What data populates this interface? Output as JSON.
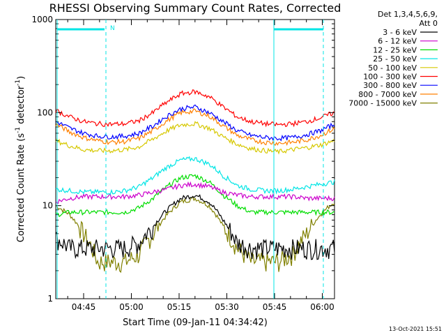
{
  "chart_data": {
    "type": "line",
    "title": "RHESSI Observing Summary Count Rates, Corrected",
    "xlabel": "Start Time (09-Jan-11 04:34:42)",
    "ylabel_main": "Corrected Count Rate (s",
    "ylabel_sup1": "-1",
    "ylabel_mid": " detector",
    "ylabel_sup2": "-1",
    "ylabel_end": ")",
    "y_scale": "log",
    "ylim": [
      1,
      1000
    ],
    "y_ticks": [
      "1",
      "10",
      "100",
      "1000"
    ],
    "x_range_minutes": [
      4.0,
      71.0
    ],
    "x_ticks": [
      {
        "label": "04:45",
        "minute": 10.3
      },
      {
        "label": "05:00",
        "minute": 25.3
      },
      {
        "label": "05:15",
        "minute": 40.3
      },
      {
        "label": "05:30",
        "minute": 55.3
      },
      {
        "label": "05:45",
        "minute": 70.3
      },
      {
        "label": "06:00",
        "minute": 85.3
      }
    ],
    "legend_header": [
      "Det 1,3,4,5,6,9,",
      "Att 0"
    ],
    "legend_placement": "right",
    "footer_date": "13-Oct-2021 15:51",
    "night_marker": "N",
    "series": [
      {
        "name": "3 - 6 keV",
        "color": "#000000",
        "values": [
          4.5,
          3.5,
          3.5,
          3.5,
          3.5,
          3.5,
          4.0,
          6.0,
          9.0,
          12.0,
          13.0,
          11.0,
          7.0,
          4.0,
          3.5,
          3.5,
          3.5,
          3.5,
          3.5,
          3.5,
          3.5
        ]
      },
      {
        "name": "6 - 12 keV",
        "color": "#cc00cc",
        "values": [
          11.0,
          12.0,
          12.5,
          12.5,
          12.5,
          12.5,
          13.0,
          14.0,
          15.0,
          16.5,
          17.0,
          16.0,
          14.0,
          13.0,
          12.5,
          12.5,
          12.5,
          12.5,
          12.0,
          12.0,
          12.0
        ]
      },
      {
        "name": "12 - 25 keV",
        "color": "#00dd00",
        "values": [
          8.0,
          8.5,
          8.5,
          8.5,
          8.5,
          8.5,
          9.5,
          12.0,
          16.0,
          20.0,
          21.0,
          18.0,
          13.0,
          10.0,
          8.5,
          8.5,
          8.5,
          8.5,
          8.5,
          8.5,
          8.5
        ]
      },
      {
        "name": "25 - 50 keV",
        "color": "#00e5e5",
        "values": [
          15.0,
          14.5,
          14.0,
          14.0,
          14.0,
          14.5,
          16.0,
          20.0,
          26.0,
          31.0,
          32.0,
          28.0,
          21.0,
          16.5,
          15.0,
          14.5,
          14.5,
          15.0,
          16.0,
          17.0,
          18.0
        ]
      },
      {
        "name": "50 - 100 keV",
        "color": "#d6c800",
        "values": [
          50.0,
          44.0,
          40.0,
          39.0,
          39.0,
          40.0,
          43.0,
          52.0,
          64.0,
          74.0,
          76.0,
          68.0,
          55.0,
          46.0,
          41.0,
          39.0,
          38.0,
          40.0,
          42.0,
          45.0,
          50.0
        ]
      },
      {
        "name": "100 - 300 keV",
        "color": "#ff0000",
        "values": [
          105.0,
          90.0,
          80.0,
          76.0,
          75.0,
          76.0,
          82.0,
          100.0,
          130.0,
          160.0,
          168.0,
          148.0,
          115.0,
          90.0,
          80.0,
          76.0,
          74.0,
          76.0,
          80.0,
          88.0,
          100.0
        ]
      },
      {
        "name": "300 - 800 keV",
        "color": "#0000ff",
        "values": [
          80.0,
          68.0,
          60.0,
          56.0,
          55.0,
          56.0,
          60.0,
          72.0,
          92.0,
          110.0,
          115.0,
          100.0,
          80.0,
          64.0,
          57.0,
          54.0,
          53.0,
          54.0,
          58.0,
          64.0,
          75.0
        ]
      },
      {
        "name": "800 - 7000 keV",
        "color": "#ff8000",
        "values": [
          75.0,
          62.0,
          54.0,
          50.0,
          48.0,
          49.0,
          53.0,
          64.0,
          82.0,
          100.0,
          104.0,
          92.0,
          72.0,
          57.0,
          51.0,
          48.0,
          47.0,
          48.0,
          51.0,
          57.0,
          67.0
        ]
      },
      {
        "name": "7000 - 15000 keV",
        "color": "#808000",
        "values": [
          10.0,
          8.0,
          5.0,
          2.5,
          2.5,
          2.5,
          3.0,
          5.0,
          8.0,
          11.0,
          12.0,
          10.0,
          6.0,
          3.5,
          2.5,
          2.5,
          2.5,
          3.0,
          5.0,
          8.0,
          11.0
        ]
      }
    ]
  }
}
